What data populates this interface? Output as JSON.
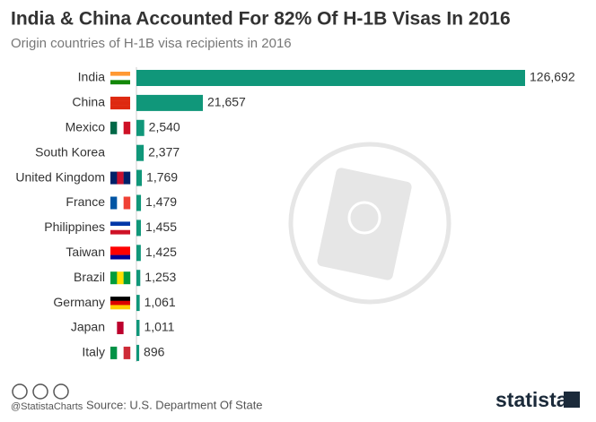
{
  "chart_data": {
    "type": "bar",
    "orientation": "horizontal",
    "title": "India & China Accounted For 82% Of H-1B Visas In 2016",
    "subtitle": "Origin countries of H-1B visa recipients in 2016",
    "categories": [
      "India",
      "China",
      "Mexico",
      "South Korea",
      "United Kingdom",
      "France",
      "Philippines",
      "Taiwan",
      "Brazil",
      "Germany",
      "Japan",
      "Italy"
    ],
    "values": [
      126692,
      21657,
      2540,
      2377,
      1769,
      1479,
      1455,
      1425,
      1253,
      1061,
      1011,
      896
    ],
    "value_labels": [
      "126,692",
      "21,657",
      "2,540",
      "2,377",
      "1,769",
      "1,479",
      "1,455",
      "1,425",
      "1,253",
      "1,061",
      "1,011",
      "896"
    ],
    "color": "#10977a",
    "source": "Source: U.S. Department Of State",
    "credit": "@StatistaCharts",
    "brand": "statista"
  }
}
